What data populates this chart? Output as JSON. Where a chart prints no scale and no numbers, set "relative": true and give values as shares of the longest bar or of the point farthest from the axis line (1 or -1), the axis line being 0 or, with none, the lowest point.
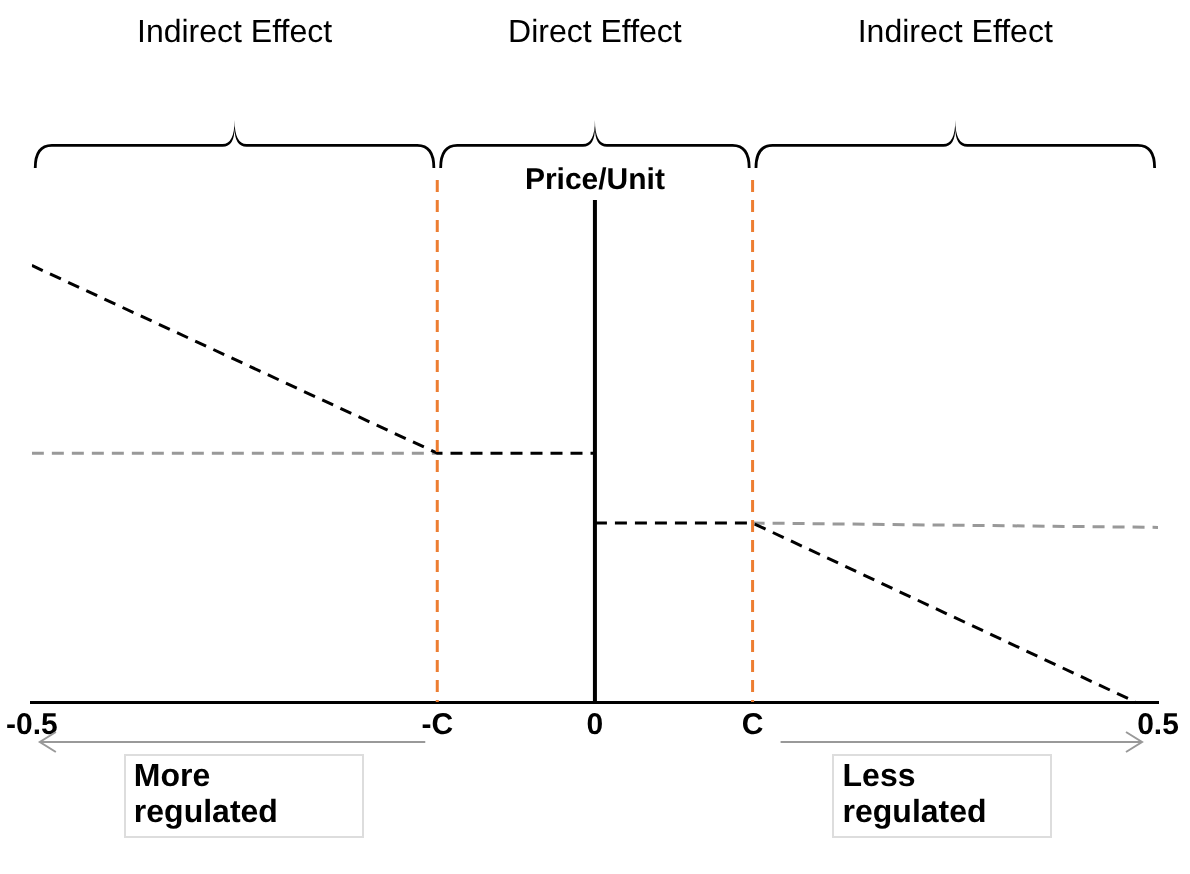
{
  "chart_data": {
    "type": "line",
    "relative": true,
    "ylabel": "Price/Unit",
    "xlim": [
      -0.5,
      0.5
    ],
    "xticks": [
      -0.5,
      {
        "value": -0.14,
        "label": "-C"
      },
      0,
      {
        "value": 0.14,
        "label": "C"
      },
      0.5
    ],
    "series": [
      {
        "color": "#000000",
        "line_style": "dashed",
        "x": [
          -0.5,
          -0.14,
          0
        ],
        "values": [
          1,
          0.57,
          0.57
        ]
      },
      {
        "color": "#000000",
        "line_style": "dashed",
        "x": [
          0,
          0.14,
          0.48
        ],
        "values": [
          0.41,
          0.41,
          0
        ]
      },
      {
        "color": "#999999",
        "line_style": "dashed",
        "x": [
          -0.5,
          -0.14
        ],
        "values": [
          0.57,
          0.57
        ]
      },
      {
        "color": "#999999",
        "line_style": "dashed",
        "x": [
          0.14,
          0.5
        ],
        "values": [
          0.41,
          0.4
        ]
      }
    ],
    "ref_lines": [
      {
        "axis": "x",
        "value": -0.14,
        "color": "#ed7d31",
        "line_style": "dashed"
      },
      {
        "axis": "x",
        "value": 0.14,
        "color": "#ed7d31",
        "line_style": "dashed"
      }
    ],
    "annotations": [
      "Indirect Effect",
      "Direct Effect",
      "Indirect Effect",
      "More regulated",
      "Less regulated"
    ],
    "grid": false,
    "legend": false,
    "tick_labels": "x",
    "marker": "none"
  }
}
